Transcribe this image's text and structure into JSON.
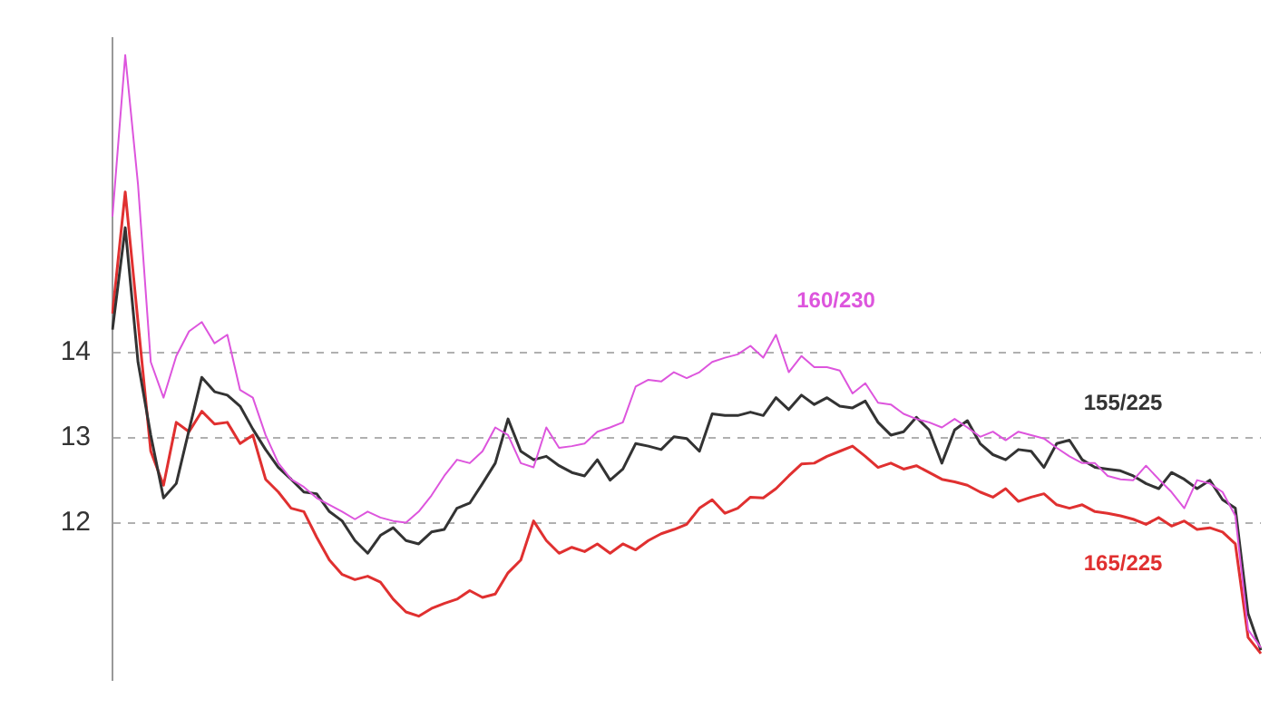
{
  "chart_data": {
    "type": "line",
    "categories": [
      null,
      null,
      null,
      null,
      null,
      null,
      null,
      null,
      null,
      null,
      null,
      null,
      null,
      null,
      null,
      null,
      null,
      null,
      null,
      null,
      null,
      null,
      null,
      null,
      null,
      null,
      null,
      null,
      null,
      null,
      null,
      null,
      null,
      null,
      null,
      null,
      null,
      null,
      null,
      null,
      null,
      null,
      null,
      null,
      null,
      null,
      null,
      null,
      null,
      null,
      null,
      null,
      null,
      null,
      null,
      null,
      null,
      null,
      null,
      null,
      null,
      null,
      null,
      null,
      null,
      null,
      null,
      null,
      null,
      null,
      null,
      null,
      null,
      null,
      null,
      null,
      null,
      null,
      null,
      null,
      null,
      null,
      null,
      null,
      null,
      null,
      null,
      null,
      null,
      null,
      null
    ],
    "series": [
      {
        "name": "160/230",
        "color": "#dd55dd",
        "values": [
          15.6,
          17.5,
          15.98,
          13.89,
          13.47,
          13.96,
          14.25,
          14.36,
          14.11,
          14.21,
          13.56,
          13.47,
          13.03,
          12.7,
          12.51,
          12.42,
          12.29,
          12.21,
          12.13,
          12.04,
          12.13,
          12.06,
          12.02,
          12.0,
          12.13,
          12.32,
          12.55,
          12.74,
          12.7,
          12.84,
          13.12,
          13.03,
          12.7,
          12.65,
          13.12,
          12.88,
          12.9,
          12.93,
          13.07,
          13.12,
          13.18,
          13.6,
          13.68,
          13.66,
          13.77,
          13.7,
          13.77,
          13.89,
          13.94,
          13.98,
          14.08,
          13.94,
          14.21,
          13.77,
          13.96,
          13.83,
          13.83,
          13.79,
          13.52,
          13.64,
          13.41,
          13.39,
          13.28,
          13.22,
          13.18,
          13.12,
          13.22,
          13.12,
          13.01,
          13.07,
          12.97,
          13.07,
          13.03,
          12.99,
          12.88,
          12.78,
          12.7,
          12.7,
          12.55,
          12.51,
          12.5,
          12.67,
          12.51,
          12.36,
          12.17,
          12.5,
          12.46,
          12.36,
          12.08,
          10.74,
          10.53
        ]
      },
      {
        "name": "155/225",
        "color": "#333333",
        "values": [
          14.27,
          15.47,
          13.89,
          13.03,
          12.29,
          12.46,
          13.09,
          13.71,
          13.54,
          13.5,
          13.37,
          13.1,
          12.86,
          12.65,
          12.51,
          12.36,
          12.34,
          12.13,
          12.02,
          11.79,
          11.64,
          11.85,
          11.94,
          11.79,
          11.75,
          11.89,
          11.92,
          12.17,
          12.23,
          12.46,
          12.7,
          13.22,
          12.84,
          12.74,
          12.78,
          12.67,
          12.59,
          12.55,
          12.74,
          12.5,
          12.63,
          12.93,
          12.9,
          12.86,
          13.01,
          12.99,
          12.84,
          13.28,
          13.26,
          13.26,
          13.3,
          13.26,
          13.47,
          13.33,
          13.5,
          13.39,
          13.47,
          13.37,
          13.35,
          13.43,
          13.18,
          13.03,
          13.07,
          13.24,
          13.09,
          12.7,
          13.09,
          13.2,
          12.93,
          12.8,
          12.74,
          12.86,
          12.84,
          12.65,
          12.93,
          12.97,
          12.74,
          12.65,
          12.63,
          12.61,
          12.55,
          12.46,
          12.4,
          12.59,
          12.51,
          12.4,
          12.5,
          12.27,
          12.17,
          10.93,
          10.5
        ]
      },
      {
        "name": "165/225",
        "color": "#e03030",
        "values": [
          14.46,
          15.89,
          14.36,
          12.84,
          12.44,
          13.18,
          13.07,
          13.31,
          13.16,
          13.18,
          12.93,
          13.03,
          12.51,
          12.36,
          12.17,
          12.13,
          11.83,
          11.56,
          11.39,
          11.33,
          11.37,
          11.3,
          11.1,
          10.95,
          10.9,
          10.99,
          11.05,
          11.1,
          11.2,
          11.12,
          11.16,
          11.41,
          11.56,
          12.02,
          11.79,
          11.64,
          11.71,
          11.66,
          11.75,
          11.64,
          11.75,
          11.68,
          11.79,
          11.87,
          11.92,
          11.98,
          12.17,
          12.27,
          12.11,
          12.17,
          12.3,
          12.29,
          12.4,
          12.55,
          12.69,
          12.7,
          12.78,
          12.84,
          12.9,
          12.78,
          12.65,
          12.7,
          12.63,
          12.67,
          12.59,
          12.51,
          12.48,
          12.44,
          12.36,
          12.3,
          12.4,
          12.25,
          12.3,
          12.34,
          12.21,
          12.17,
          12.21,
          12.13,
          12.11,
          12.08,
          12.04,
          11.98,
          12.06,
          11.96,
          12.02,
          11.92,
          11.94,
          11.89,
          11.75,
          10.65,
          10.46
        ]
      }
    ],
    "ylim": [
      10.15,
      17.7
    ],
    "yticks": [
      12,
      13,
      14
    ],
    "grid": "y",
    "legend": false,
    "tick_labels": "y",
    "marker": "none",
    "line_style": "solid"
  }
}
